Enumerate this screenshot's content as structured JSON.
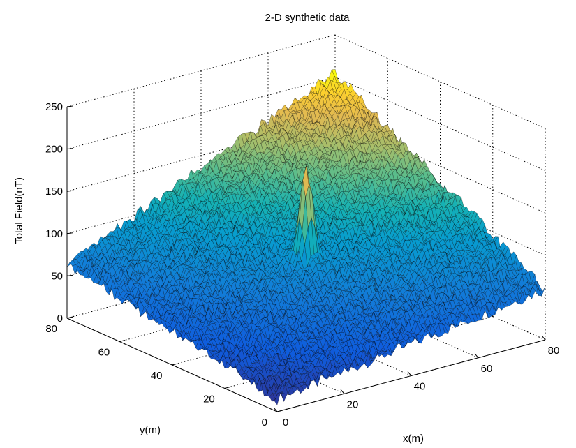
{
  "chart_data": {
    "type": "surface",
    "title": "2-D synthetic data",
    "xlabel": "x(m)",
    "ylabel": "y(m)",
    "zlabel": "Total Field(nT)",
    "xlim": [
      0,
      80
    ],
    "ylim": [
      0,
      80
    ],
    "zlim": [
      0,
      250
    ],
    "x_ticks": [
      0,
      20,
      40,
      60,
      80
    ],
    "y_ticks": [
      0,
      20,
      40,
      60,
      80
    ],
    "z_ticks": [
      0,
      50,
      100,
      150,
      200,
      250
    ],
    "x_range": [
      0,
      80
    ],
    "y_range": [
      0,
      80
    ],
    "surface": {
      "description_values": {
        "z_at_x0_y0": 15,
        "z_at_x80_y0": 60,
        "z_at_x0_y80": 65,
        "z_at_x80_y80": 205,
        "peak_x": 40,
        "peak_y": 40,
        "peak_z": 180
      }
    },
    "colormap": "parula",
    "grid": true
  }
}
